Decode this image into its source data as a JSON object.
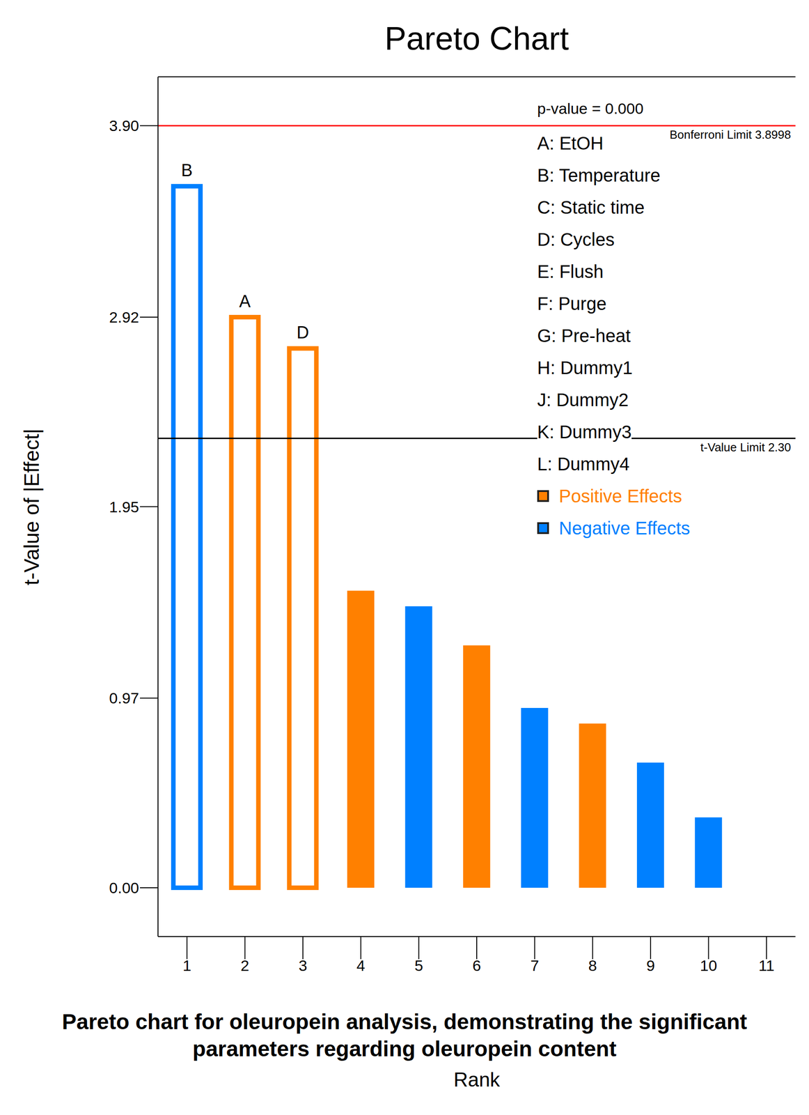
{
  "chart_data": {
    "type": "bar",
    "title": "Pareto Chart",
    "x_label": "Rank",
    "y_label": "t-Value of |Effect|",
    "caption": "Pareto chart for oleuropein analysis, demonstrating the significant parameters regarding oleuropein content",
    "categories": [
      "1",
      "2",
      "3",
      "4",
      "5",
      "6",
      "7",
      "8",
      "9",
      "10",
      "11"
    ],
    "values": [
      3.59,
      2.92,
      2.76,
      1.52,
      1.44,
      1.24,
      0.92,
      0.84,
      0.64,
      0.36,
      null
    ],
    "colors": [
      "#0080ff",
      "#ff8000",
      "#ff8000",
      "#ff8000",
      "#0080ff",
      "#ff8000",
      "#0080ff",
      "#ff8000",
      "#0080ff",
      "#0080ff",
      null
    ],
    "bar_labels": [
      "B",
      "A",
      "D",
      null,
      null,
      null,
      null,
      null,
      null,
      null,
      null
    ],
    "ylim": [
      -0.25,
      4.15
    ],
    "yticks": [
      {
        "value": 0,
        "label": "0.00"
      },
      0.97,
      1.95,
      2.92,
      {
        "value": 3.9,
        "label": "3.90"
      }
    ],
    "grid": false,
    "reference_lines": [
      {
        "value": 3.8998,
        "label": "Bonferroni Limit 3.8998",
        "color": "#ff0000"
      },
      {
        "value": 2.3,
        "label": "t-Value Limit 2.30",
        "color": "#000000"
      }
    ],
    "p_value_text": "p-value = 0.000",
    "factors": [
      "A: EtOH",
      "B: Temperature",
      "C: Static time",
      "D: Cycles",
      "E: Flush",
      "F: Purge",
      "G: Pre-heat",
      "H: Dummy1",
      "J: Dummy2",
      "K: Dummy3",
      "L: Dummy4"
    ],
    "effect_legend": [
      {
        "name": "Positive Effects",
        "color": "#ff8000"
      },
      {
        "name": "Negative Effects",
        "color": "#0080ff"
      }
    ],
    "legend": "upper right"
  }
}
